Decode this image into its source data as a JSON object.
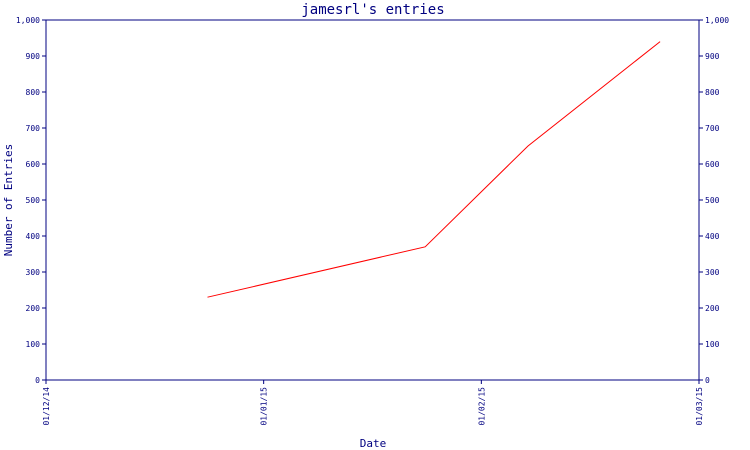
{
  "chart_data": {
    "type": "line",
    "title": "jamesrl's entries",
    "xlabel": "Date",
    "ylabel": "Number of Entries",
    "x_ticks": [
      "01/12/14",
      "01/01/15",
      "01/02/15",
      "01/03/15"
    ],
    "y_ticks": [
      "0",
      "100",
      "200",
      "300",
      "400",
      "500",
      "600",
      "700",
      "800",
      "900",
      "1,000"
    ],
    "ylim": [
      0,
      1000
    ],
    "grid": false,
    "series": [
      {
        "points": [
          {
            "x": "2014-12-24",
            "y": 230
          },
          {
            "x": "2015-01-24",
            "y": 370
          },
          {
            "x": "2015-02-07",
            "y": 650
          },
          {
            "x": "2015-02-24",
            "y": 940
          }
        ]
      }
    ],
    "colors": {
      "line": "#ff0000",
      "axes": "#000080",
      "text": "#000080"
    }
  }
}
